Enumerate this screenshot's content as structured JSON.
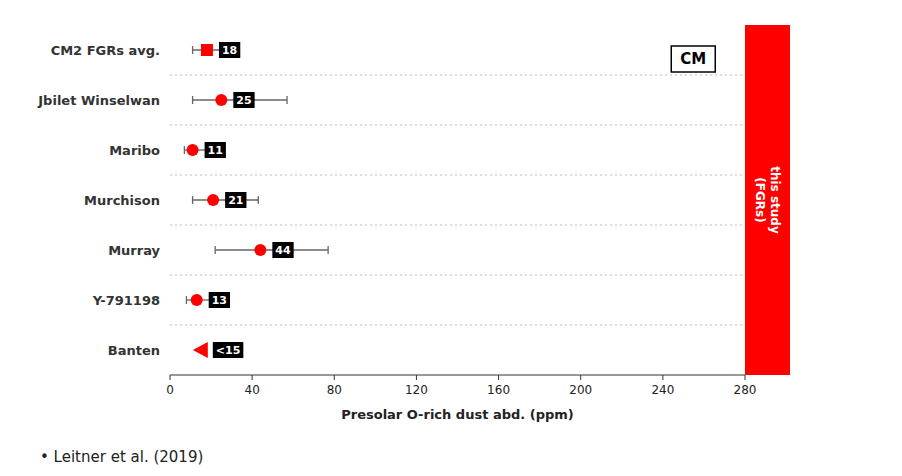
{
  "chart_data": {
    "type": "scatter",
    "orientation": "horizontal",
    "categories": [
      "CM2 FGRs avg.",
      "Jbilet Winselwan",
      "Maribo",
      "Murchison",
      "Murray",
      "Y-791198",
      "Banten"
    ],
    "values": [
      18,
      25,
      11,
      21,
      44,
      13,
      15
    ],
    "xerr_low": [
      7,
      14,
      4,
      10,
      22,
      5,
      0
    ],
    "xerr_high": [
      10,
      32,
      8,
      22,
      33,
      10,
      0
    ],
    "markers": [
      "square",
      "circle",
      "circle",
      "circle",
      "circle",
      "circle",
      "triangle_left"
    ],
    "data_labels": true,
    "value_labels": [
      "18",
      "25",
      "11",
      "21",
      "44",
      "13",
      "<15"
    ],
    "color": "#ff0000",
    "x_label": "Presolar O-rich dust abd. (ppm)",
    "xlim": [
      0,
      280
    ],
    "xticks": [
      0,
      40,
      80,
      120,
      160,
      200,
      240,
      280
    ],
    "grid": false,
    "annotations": [
      "CM",
      "this study\n(FGRs)",
      "• Leitner et al. (2019)"
    ]
  }
}
